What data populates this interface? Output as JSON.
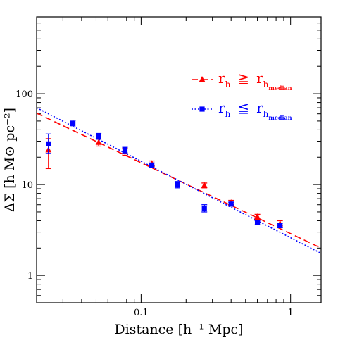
{
  "chart_data": {
    "type": "scatter",
    "xlabel": "Distance [h⁻¹ Mpc]",
    "ylabel": "ΔΣ [h M⊙ pc⁻²]",
    "xscale": "log",
    "yscale": "log",
    "xlim": [
      0.02,
      1.6
    ],
    "ylim": [
      0.5,
      700
    ],
    "x_ticks": [
      {
        "value": 0.1,
        "label": "0.1"
      },
      {
        "value": 1,
        "label": "1"
      }
    ],
    "y_ticks": [
      {
        "value": 1,
        "label": "1"
      },
      {
        "value": 10,
        "label": "10"
      },
      {
        "value": 100,
        "label": "100"
      }
    ],
    "grid": false,
    "legend_placement": "top-right",
    "series": [
      {
        "name": "r_h ≥ r_h_median",
        "legend": {
          "sym": "r",
          "sub": "h",
          "op": "≧",
          "sym2": "r",
          "sub2": "h",
          "subsub2": "median"
        },
        "color": "#ff0000",
        "marker": "triangle",
        "line_style": "dashed",
        "points": [
          {
            "x": 0.024,
            "y": 24,
            "ylo": 15,
            "yhi": 32
          },
          {
            "x": 0.052,
            "y": 29,
            "ylo": 26.5,
            "yhi": 31.5
          },
          {
            "x": 0.078,
            "y": 23,
            "ylo": 21,
            "yhi": 25
          },
          {
            "x": 0.118,
            "y": 17,
            "ylo": 15.8,
            "yhi": 18.2
          },
          {
            "x": 0.265,
            "y": 9.8,
            "ylo": 9.2,
            "yhi": 10.4
          },
          {
            "x": 0.4,
            "y": 6.3,
            "ylo": 5.9,
            "yhi": 6.7
          },
          {
            "x": 0.6,
            "y": 4.4,
            "ylo": 4.1,
            "yhi": 4.7
          },
          {
            "x": 0.85,
            "y": 3.7,
            "ylo": 3.4,
            "yhi": 4.0
          }
        ],
        "fit": {
          "x": [
            0.02,
            1.6
          ],
          "y": [
            61,
            2.0
          ]
        }
      },
      {
        "name": "r_h ≤ r_h_median",
        "legend": {
          "sym": "r",
          "sub": "h",
          "op": "≦",
          "sym2": "r",
          "sub2": "h",
          "subsub2": "median"
        },
        "color": "#0000ff",
        "marker": "square",
        "line_style": "dotted",
        "points": [
          {
            "x": 0.024,
            "y": 28,
            "ylo": 22,
            "yhi": 36
          },
          {
            "x": 0.035,
            "y": 47,
            "ylo": 43,
            "yhi": 51
          },
          {
            "x": 0.052,
            "y": 34,
            "ylo": 31.5,
            "yhi": 36.5
          },
          {
            "x": 0.078,
            "y": 24,
            "ylo": 22.3,
            "yhi": 25.7
          },
          {
            "x": 0.118,
            "y": 16.3,
            "ylo": 15.3,
            "yhi": 17.3
          },
          {
            "x": 0.175,
            "y": 10,
            "ylo": 9.2,
            "yhi": 10.8
          },
          {
            "x": 0.265,
            "y": 5.5,
            "ylo": 5.0,
            "yhi": 6.0
          },
          {
            "x": 0.4,
            "y": 6.1,
            "ylo": 5.8,
            "yhi": 6.4
          },
          {
            "x": 0.6,
            "y": 3.8,
            "ylo": 3.6,
            "yhi": 4.0
          },
          {
            "x": 0.85,
            "y": 3.55,
            "ylo": 3.35,
            "yhi": 3.75
          }
        ],
        "fit": {
          "x": [
            0.02,
            1.6
          ],
          "y": [
            70,
            1.75
          ]
        }
      }
    ]
  }
}
